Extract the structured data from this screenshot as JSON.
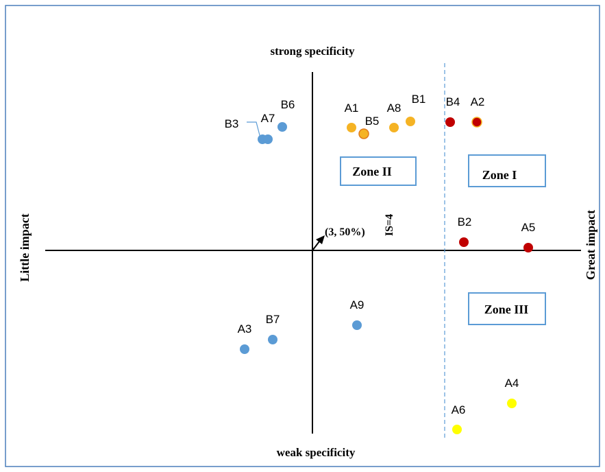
{
  "diagram": {
    "top_label": "strong specificity",
    "bottom_label": "weak specificity",
    "left_label": "Little impact",
    "right_label": "Great impact",
    "origin_label": "(3, 50%)",
    "threshold_label": "IS=4",
    "zones": [
      {
        "id": "zone-2",
        "label": "Zone II"
      },
      {
        "id": "zone-1",
        "label": "Zone I"
      },
      {
        "id": "zone-3",
        "label": "Zone III"
      }
    ],
    "points": [
      {
        "id": "A1",
        "label": "A1",
        "color": "#F5B324"
      },
      {
        "id": "B5",
        "label": "B5",
        "color": "#F5B324",
        "stroke": "#E07B1C"
      },
      {
        "id": "A8",
        "label": "A8",
        "color": "#F5B324"
      },
      {
        "id": "B1",
        "label": "B1",
        "color": "#F5B324"
      },
      {
        "id": "B4",
        "label": "B4",
        "color": "#C00000"
      },
      {
        "id": "A2",
        "label": "A2",
        "color": "#C00000",
        "stroke": "#F5B324"
      },
      {
        "id": "B3",
        "label": "B3",
        "color": "#5B9BD5"
      },
      {
        "id": "A7",
        "label": "A7",
        "color": "#5B9BD5"
      },
      {
        "id": "B6",
        "label": "B6",
        "color": "#5B9BD5"
      },
      {
        "id": "B2",
        "label": "B2",
        "color": "#C00000"
      },
      {
        "id": "A5",
        "label": "A5",
        "color": "#C00000"
      },
      {
        "id": "A9",
        "label": "A9",
        "color": "#5B9BD5"
      },
      {
        "id": "A3",
        "label": "A3",
        "color": "#5B9BD5"
      },
      {
        "id": "B7",
        "label": "B7",
        "color": "#5B9BD5"
      },
      {
        "id": "A4",
        "label": "A4",
        "color": "#FFFF00"
      },
      {
        "id": "A6",
        "label": "A6",
        "color": "#FFFF00"
      }
    ],
    "colors": {
      "frame": "#4A7EBB",
      "zone_box": "#5B9BD5",
      "threshold_line": "#5B9BD5",
      "axis": "#000000"
    }
  }
}
